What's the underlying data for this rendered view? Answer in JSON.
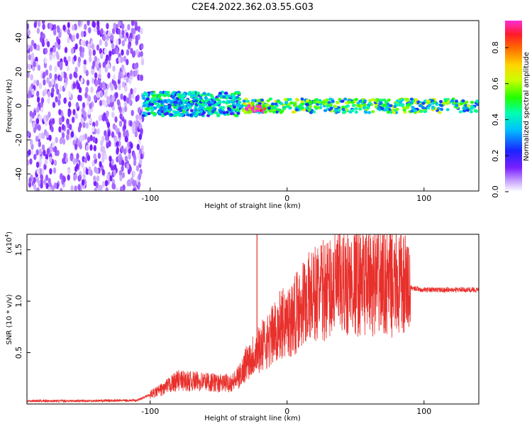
{
  "title": "C2E4.2022.362.03.55.G03",
  "colors": {
    "snr_line": "#e8302c",
    "spectrogram_low": "#7a1fff",
    "background": "#ffffff"
  },
  "chart_data": [
    {
      "type": "heatmap",
      "name": "spectrogram",
      "xlabel": "Height of straight line (km)",
      "ylabel": "Frequency (Hz)",
      "xlim": [
        -190,
        140
      ],
      "ylim": [
        -50,
        50
      ],
      "xticks": [
        -100,
        0,
        100
      ],
      "yticks": [
        -40,
        -20,
        0,
        20,
        40
      ],
      "colorbar": {
        "label": "Normalized spectral amplitude",
        "range": [
          0.0,
          0.95
        ],
        "ticks": [
          0.0,
          0.2,
          0.4,
          0.6,
          0.8
        ],
        "colormap": "rainbow (violet-blue-cyan-green-yellow-orange-red-magenta)"
      },
      "regions": [
        {
          "x_range": [
            -190,
            -105
          ],
          "freq_range": [
            -50,
            50
          ],
          "amplitude": 0.03,
          "description": "broadband noise"
        },
        {
          "x_range": [
            -105,
            -35
          ],
          "freq_range": [
            -6,
            8
          ],
          "amplitude": 0.35
        },
        {
          "x_range": [
            -35,
            140
          ],
          "freq_range": [
            -4,
            4
          ],
          "amplitude": 0.45,
          "center_freq": -1
        },
        {
          "x_range": [
            -30,
            -15
          ],
          "freq_range": [
            -4,
            0
          ],
          "amplitude": 0.9
        }
      ]
    },
    {
      "type": "line",
      "name": "snr",
      "xlabel": "Height of straight line (km)",
      "ylabel": "SNR (10 * v/v)",
      "y_multiplier": "(x10",
      "y_multiplier_exp": "4",
      "y_multiplier_close": ")",
      "xlim": [
        -190,
        140
      ],
      "ylim": [
        0,
        16500
      ],
      "xticks": [
        -100,
        0,
        100
      ],
      "yticks": [
        0.5,
        1.0,
        1.5
      ],
      "ytick_labels": [
        "0.5",
        "1.0",
        "1.5"
      ],
      "x": [
        -190,
        -150,
        -110,
        -100,
        -90,
        -80,
        -70,
        -60,
        -50,
        -40,
        -35,
        -30,
        -25,
        -20,
        -15,
        -10,
        -5,
        0,
        5,
        10,
        20,
        30,
        40,
        50,
        60,
        70,
        80,
        90,
        100,
        110,
        120,
        130,
        140
      ],
      "y": [
        300,
        300,
        350,
        900,
        1500,
        2300,
        2200,
        2200,
        2000,
        2100,
        2600,
        4000,
        4800,
        5500,
        6000,
        6800,
        7700,
        8000,
        8500,
        9800,
        10600,
        11300,
        11600,
        11900,
        11800,
        11900,
        11600,
        11300,
        11100,
        11100,
        11100,
        11100,
        11100
      ],
      "spike": {
        "x": -22,
        "y": 16500
      }
    }
  ]
}
